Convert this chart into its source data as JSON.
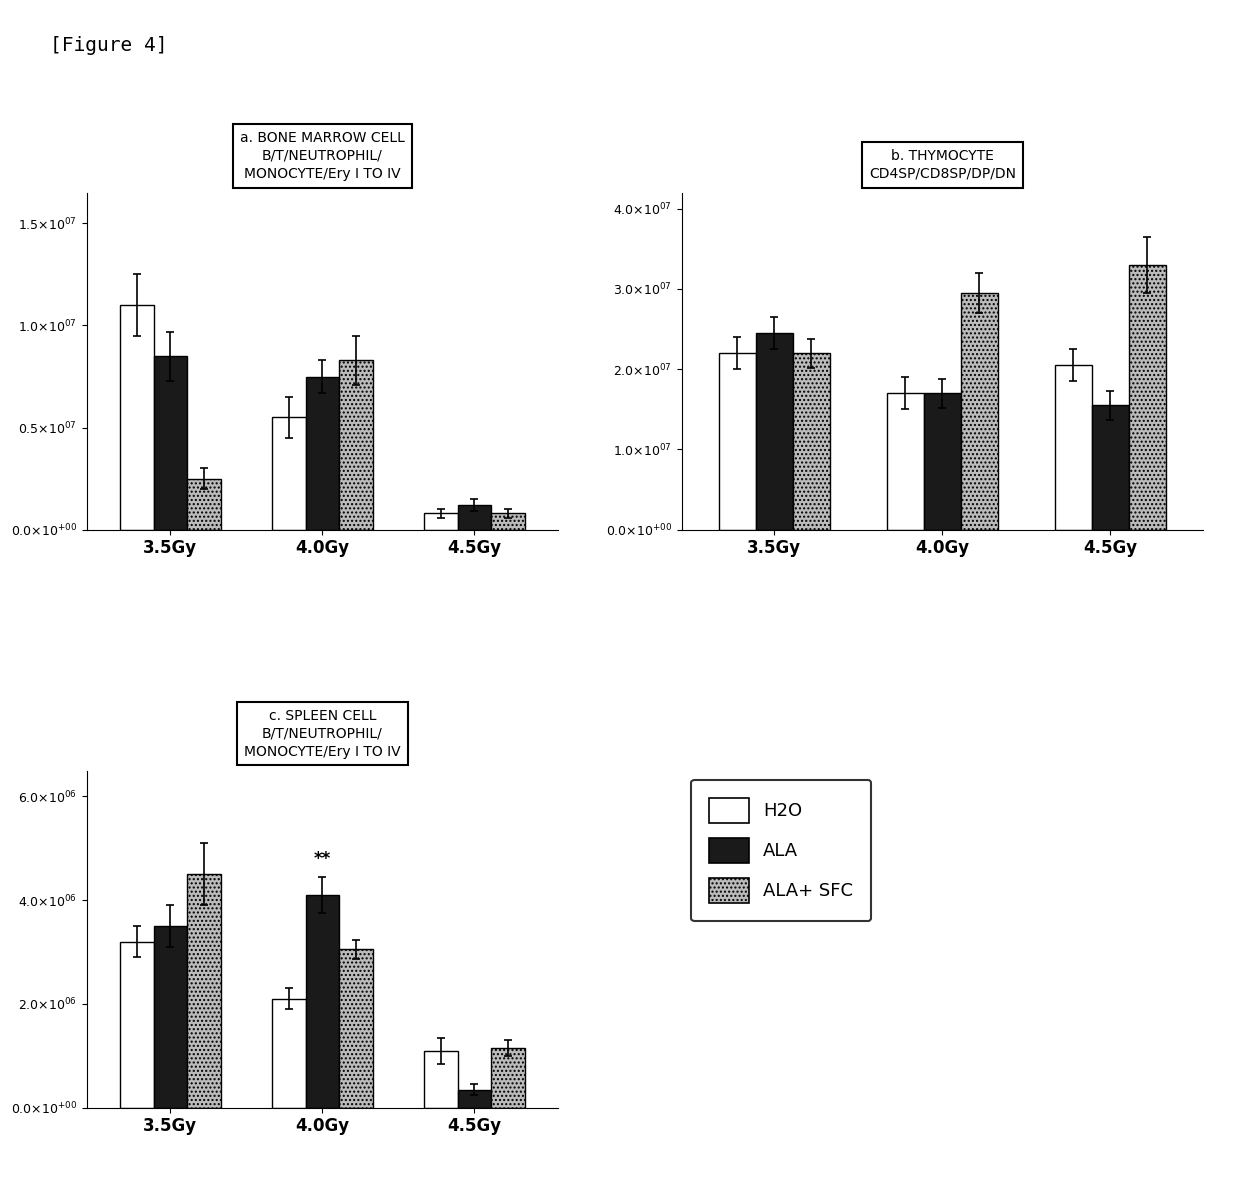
{
  "panel_a": {
    "title_lines": [
      "a. BONE MARROW CELL",
      "B/T/NEUTROPHIL/",
      "MONOCYTE/Ery I TO IV"
    ],
    "groups": [
      "3.5Gy",
      "4.0Gy",
      "4.5Gy"
    ],
    "h2o": [
      11000000.0,
      5500000.0,
      800000.0
    ],
    "ala": [
      8500000.0,
      7500000.0,
      1200000.0
    ],
    "ala_sfc": [
      2500000.0,
      8300000.0,
      800000.0
    ],
    "h2o_err": [
      1500000.0,
      1000000.0,
      200000.0
    ],
    "ala_err": [
      1200000.0,
      800000.0,
      300000.0
    ],
    "ala_sfc_err": [
      500000.0,
      1200000.0,
      200000.0
    ],
    "ylim": [
      0,
      16500000.0
    ],
    "yticks": [
      0.0,
      5000000.0,
      10000000.0,
      15000000.0
    ],
    "exp": 7,
    "exp_label": "07"
  },
  "panel_b": {
    "title_lines": [
      "b. THYMOCYTE",
      "CD4SP/CD8SP/DP/DN"
    ],
    "groups": [
      "3.5Gy",
      "4.0Gy",
      "4.5Gy"
    ],
    "h2o": [
      22000000.0,
      17000000.0,
      20500000.0
    ],
    "ala": [
      24500000.0,
      17000000.0,
      15500000.0
    ],
    "ala_sfc": [
      22000000.0,
      29500000.0,
      33000000.0
    ],
    "h2o_err": [
      2000000.0,
      2000000.0,
      2000000.0
    ],
    "ala_err": [
      2000000.0,
      1800000.0,
      1800000.0
    ],
    "ala_sfc_err": [
      1800000.0,
      2500000.0,
      3500000.0
    ],
    "ylim": [
      0,
      42000000.0
    ],
    "yticks": [
      0.0,
      10000000.0,
      20000000.0,
      30000000.0,
      40000000.0
    ],
    "exp": 7,
    "exp_label": "07"
  },
  "panel_c": {
    "title_lines": [
      "c. SPLEEN CELL",
      "B/T/NEUTROPHIL/",
      "MONOCYTE/Ery I TO IV"
    ],
    "groups": [
      "3.5Gy",
      "4.0Gy",
      "4.5Gy"
    ],
    "h2o": [
      3200000.0,
      2100000.0,
      1100000.0
    ],
    "ala": [
      3500000.0,
      4100000.0,
      350000.0
    ],
    "ala_sfc": [
      4500000.0,
      3050000.0,
      1150000.0
    ],
    "h2o_err": [
      300000.0,
      200000.0,
      250000.0
    ],
    "ala_err": [
      400000.0,
      350000.0,
      100000.0
    ],
    "ala_sfc_err": [
      600000.0,
      180000.0,
      150000.0
    ],
    "ylim": [
      0,
      6500000.0
    ],
    "yticks": [
      0.0,
      2000000.0,
      4000000.0,
      6000000.0
    ],
    "exp": 6,
    "exp_label": "06",
    "ann_group_idx": 1,
    "ann_bar_idx": 1,
    "ann_text": "**"
  },
  "colors": {
    "h2o": "#ffffff",
    "ala": "#1a1a1a",
    "ala_sfc": "#bbbbbb",
    "edge": "#000000"
  },
  "legend": {
    "h2o_label": "H2O",
    "ala_label": "ALA",
    "ala_sfc_label": "ALA+ SFC"
  },
  "figure_label": "[Figure 4]",
  "bar_width": 0.22
}
